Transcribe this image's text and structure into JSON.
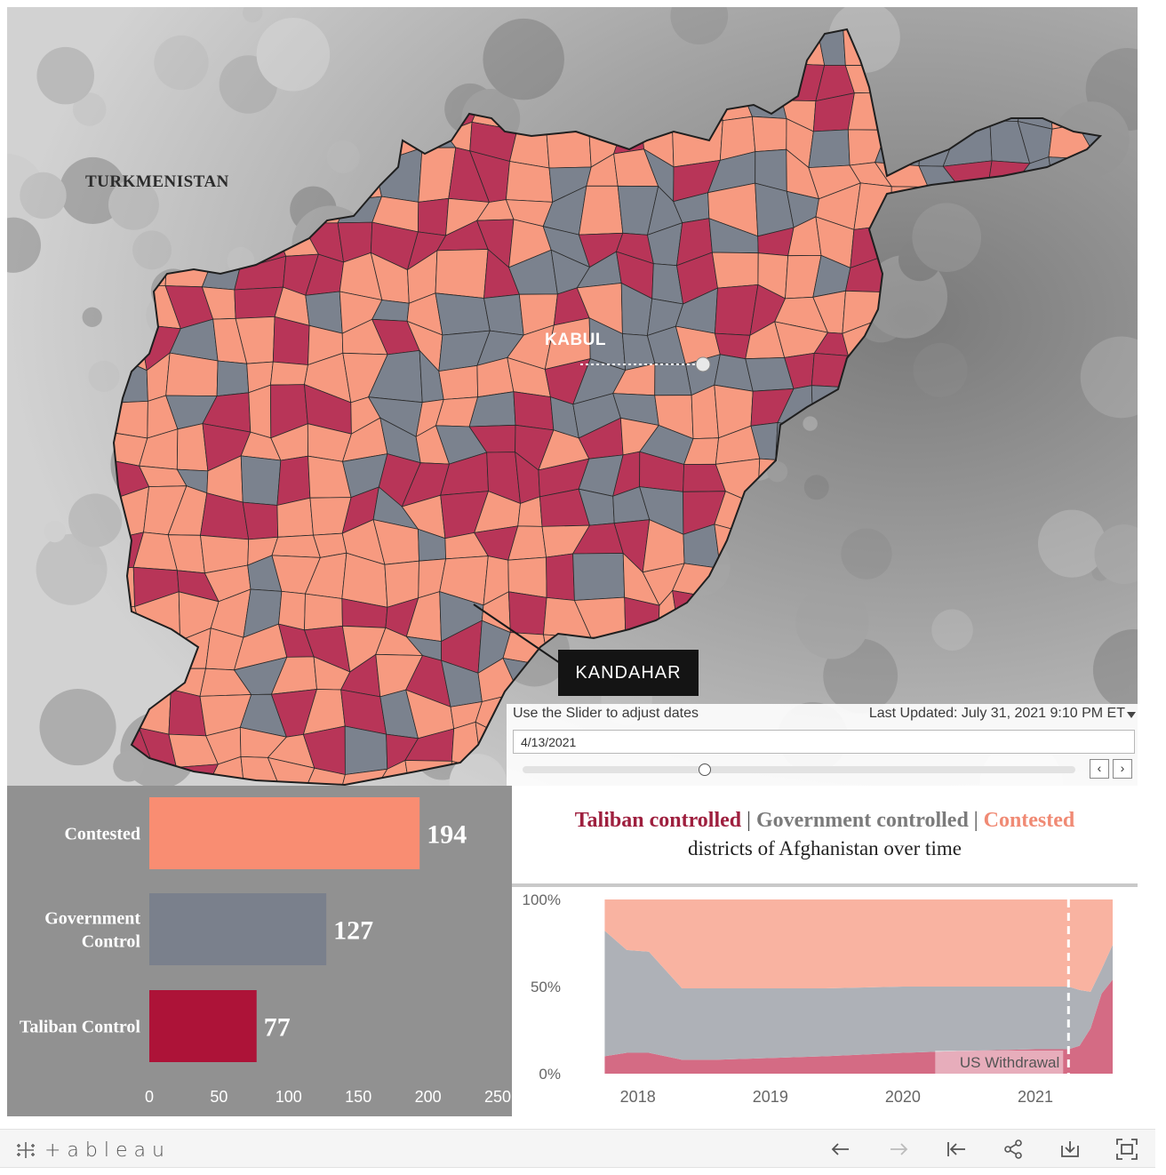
{
  "map": {
    "labels": {
      "turkmenistan": "TURKMENISTAN",
      "kabul": "KABUL",
      "kandahar": "KANDAHAR"
    },
    "colors": {
      "taliban": "#b83558",
      "government": "#7b828e",
      "contested": "#f79a80",
      "border": "#2a2a2a",
      "terrain": "#bdbdbd"
    }
  },
  "slider": {
    "caption": "Use the Slider to adjust dates",
    "last_updated": "Last Updated: July 31, 2021 9:10 PM ET",
    "date_value": "4/13/2021",
    "position_fraction": 0.33
  },
  "bar_chart_data": {
    "type": "bar",
    "orientation": "horizontal",
    "categories": [
      "Contested",
      "Government Control",
      "Taliban Control"
    ],
    "category_lines": [
      [
        "Contested"
      ],
      [
        "Government",
        "Control"
      ],
      [
        "Taliban Control"
      ]
    ],
    "values": [
      194,
      127,
      77
    ],
    "colors": [
      "#f98d72",
      "#7a808c",
      "#ad1338"
    ],
    "xlim": [
      0,
      250
    ],
    "xticks": [
      0,
      50,
      100,
      150,
      200,
      250
    ]
  },
  "title": {
    "taliban": "Taliban controlled",
    "government": "Government controlled",
    "contested": "Contested",
    "separator": "|",
    "subtitle": "districts of Afghanistan over time"
  },
  "chart_data": {
    "type": "area",
    "stacked": true,
    "normalized": "percent",
    "x": [
      "2017-10",
      "2017-12",
      "2018-02",
      "2018-05",
      "2018-08",
      "2019-01",
      "2019-06",
      "2020-01",
      "2020-06",
      "2021-01",
      "2021-04",
      "2021-05",
      "2021-06",
      "2021-07",
      "2021-08"
    ],
    "series": [
      {
        "name": "Taliban controlled",
        "color": "#d46b84",
        "values": [
          10,
          12,
          12,
          8,
          8,
          9,
          10,
          12,
          13,
          14,
          14,
          16,
          26,
          46,
          54
        ]
      },
      {
        "name": "Government controlled",
        "color": "#aeb1b7",
        "values": [
          72,
          59,
          58,
          41,
          41,
          40,
          39,
          38,
          37,
          36,
          36,
          32,
          21,
          14,
          20
        ]
      },
      {
        "name": "Contested",
        "color": "#f9b3a1",
        "values": [
          18,
          29,
          30,
          51,
          51,
          51,
          51,
          50,
          50,
          50,
          50,
          52,
          53,
          40,
          26
        ]
      }
    ],
    "ylim": [
      0,
      100
    ],
    "yticks": [
      "0%",
      "50%",
      "100%"
    ],
    "xticks": [
      "2018",
      "2019",
      "2020",
      "2021"
    ],
    "annotation": {
      "label": "US Withdrawal",
      "x": "2021-04"
    }
  },
  "footer": {
    "brand": "+ableau",
    "icons": [
      "undo-icon",
      "redo-icon",
      "revert-icon",
      "share-icon",
      "download-icon",
      "fullscreen-icon"
    ]
  }
}
